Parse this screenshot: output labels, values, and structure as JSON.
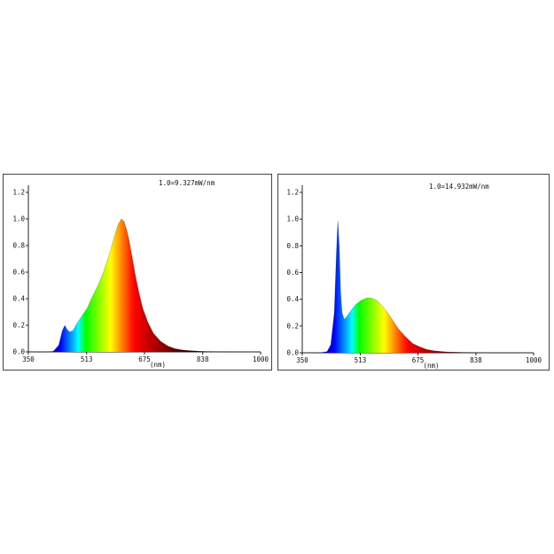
{
  "chart_data": [
    {
      "type": "area",
      "annotation": "1.0=9.327mW/nm",
      "xlabel": "(nm)",
      "ylabel": "",
      "xlim": [
        350,
        1000
      ],
      "ylim": [
        0,
        1.2
      ],
      "x_ticks": [
        "350",
        "513",
        "675",
        "838",
        "1000"
      ],
      "y_ticks": [
        "0.0",
        "0.2",
        "0.4",
        "0.6",
        "0.8",
        "1.0",
        "1.2"
      ],
      "fill": "visible-spectrum gradient",
      "series": [
        {
          "x": [
            350,
            400,
            420,
            435,
            445,
            452,
            458,
            465,
            475,
            485,
            500,
            515,
            530,
            545,
            560,
            575,
            590,
            600,
            610,
            618,
            625,
            632,
            640,
            650,
            660,
            670,
            685,
            700,
            720,
            740,
            760,
            780,
            800,
            830,
            870,
            920,
            1000
          ],
          "y": [
            0.0,
            0.0,
            0.005,
            0.05,
            0.16,
            0.2,
            0.17,
            0.15,
            0.16,
            0.21,
            0.27,
            0.33,
            0.42,
            0.5,
            0.6,
            0.72,
            0.86,
            0.95,
            1.0,
            0.98,
            0.92,
            0.84,
            0.72,
            0.57,
            0.44,
            0.33,
            0.22,
            0.14,
            0.08,
            0.045,
            0.025,
            0.015,
            0.01,
            0.005,
            0.002,
            0.001,
            0.0
          ]
        }
      ]
    },
    {
      "type": "area",
      "annotation": "1.0=14.932mW/nm",
      "xlabel": "(nm)",
      "ylabel": "",
      "xlim": [
        350,
        1000
      ],
      "ylim": [
        0,
        1.2
      ],
      "x_ticks": [
        "350",
        "513",
        "675",
        "838",
        "1000"
      ],
      "y_ticks": [
        "0.0",
        "0.2",
        "0.4",
        "0.6",
        "0.8",
        "1.0",
        "1.2"
      ],
      "fill": "visible-spectrum gradient",
      "series": [
        {
          "x": [
            350,
            400,
            420,
            430,
            440,
            446,
            450,
            454,
            458,
            462,
            468,
            475,
            485,
            500,
            515,
            530,
            545,
            560,
            575,
            590,
            605,
            620,
            640,
            660,
            680,
            700,
            720,
            740,
            760,
            800,
            850,
            900,
            1000
          ],
          "y": [
            0.0,
            0.0,
            0.01,
            0.06,
            0.3,
            0.75,
            0.99,
            0.8,
            0.45,
            0.3,
            0.25,
            0.27,
            0.31,
            0.36,
            0.39,
            0.41,
            0.41,
            0.39,
            0.35,
            0.3,
            0.24,
            0.18,
            0.12,
            0.07,
            0.045,
            0.025,
            0.015,
            0.01,
            0.006,
            0.003,
            0.001,
            0.0,
            0.0
          ]
        }
      ]
    }
  ]
}
